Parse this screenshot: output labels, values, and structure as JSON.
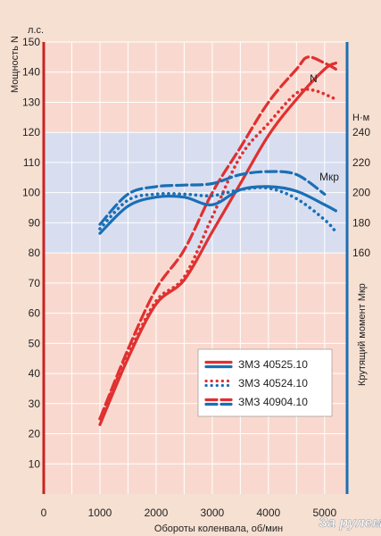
{
  "chart_data": {
    "type": "line",
    "xlabel": "Обороты коленвала, об/мин",
    "ylabel_left": "Мощность N",
    "unit_left": "л.с.",
    "ylabel_right": "Крутящий момент Мкр",
    "unit_right": "Н·м",
    "xlim": [
      0,
      5400
    ],
    "ylim_left": [
      0,
      150
    ],
    "ylim_right": [
      160,
      240
    ],
    "x_ticks": [
      0,
      1000,
      2000,
      3000,
      4000,
      5000
    ],
    "y_ticks_left": [
      10,
      20,
      30,
      40,
      50,
      60,
      70,
      80,
      90,
      100,
      110,
      120,
      130,
      140,
      150
    ],
    "y_ticks_right": [
      160,
      180,
      200,
      220,
      240
    ],
    "grid": true,
    "highlight_band_left": [
      80,
      120
    ],
    "curve_labels": {
      "power": "N",
      "torque": "Мкр"
    },
    "legend_position": "bottom-center",
    "watermark": "За рулем",
    "series": [
      {
        "name": "ЗМЗ 40525.10",
        "quantity": "power",
        "style": "solid",
        "color": "#e03030",
        "x": [
          1000,
          1500,
          2000,
          2500,
          3000,
          3500,
          4000,
          4500,
          5000,
          5200
        ],
        "y": [
          23,
          45,
          63,
          71,
          87,
          103,
          119,
          131,
          141,
          143
        ]
      },
      {
        "name": "ЗМЗ 40524.10",
        "quantity": "power",
        "style": "dotted",
        "color": "#e03030",
        "x": [
          1000,
          1500,
          2000,
          2500,
          3000,
          3500,
          4000,
          4500,
          4800,
          5200
        ],
        "y": [
          25,
          46,
          64,
          72,
          92,
          112,
          123,
          133,
          134,
          131
        ]
      },
      {
        "name": "ЗМЗ 40904.10",
        "quantity": "power",
        "style": "dashed",
        "color": "#e03030",
        "x": [
          1000,
          1500,
          2000,
          2500,
          3000,
          3500,
          4000,
          4500,
          4700,
          5000,
          5200
        ],
        "y": [
          25,
          48,
          68,
          81,
          100,
          115,
          130,
          141,
          145,
          143,
          141
        ]
      },
      {
        "name": "ЗМЗ 40525.10",
        "quantity": "torque",
        "style": "solid",
        "color": "#1a6fb5",
        "x": [
          1000,
          1500,
          2000,
          2500,
          3000,
          3500,
          4000,
          4500,
          5000,
          5200
        ],
        "y": [
          173,
          191,
          197,
          197,
          192,
          202,
          204,
          201,
          192,
          188
        ]
      },
      {
        "name": "ЗМЗ 40524.10",
        "quantity": "torque",
        "style": "dotted",
        "color": "#1a6fb5",
        "x": [
          1000,
          1500,
          2000,
          2500,
          3000,
          3500,
          4000,
          4500,
          5000,
          5200
        ],
        "y": [
          176,
          195,
          199,
          199,
          198,
          202,
          203,
          196,
          182,
          174
        ]
      },
      {
        "name": "ЗМЗ 40904.10",
        "quantity": "torque",
        "style": "dashed",
        "color": "#1a6fb5",
        "x": [
          1000,
          1500,
          2000,
          2500,
          3000,
          3500,
          4000,
          4500,
          5000
        ],
        "y": [
          179,
          199,
          204,
          205,
          206,
          212,
          214,
          212,
          199
        ]
      }
    ]
  }
}
